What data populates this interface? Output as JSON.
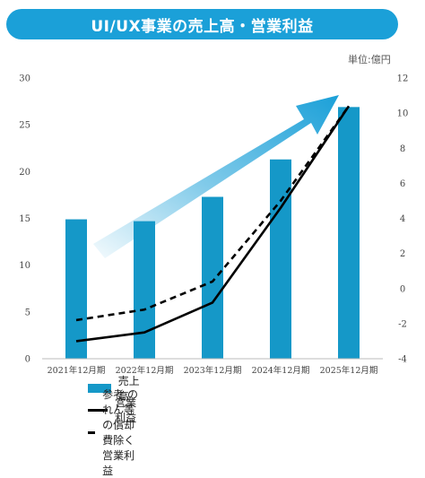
{
  "title": "UI/UX事業の売上高・営業利益",
  "unit_label": "単位:億円",
  "colors": {
    "banner": "#1ba0d8",
    "bar": "#1598c8",
    "line": "#000000",
    "arrow": "#1ba0d8"
  },
  "chart_data": {
    "type": "bar",
    "categories": [
      "2021年12月期",
      "2022年12月期",
      "2023年12月期",
      "2024年12月期",
      "2025年12月期"
    ],
    "y_left": {
      "lim": [
        0,
        30
      ],
      "ticks": [
        0,
        5,
        10,
        15,
        20,
        25,
        30
      ]
    },
    "y_right": {
      "lim": [
        -4,
        12
      ],
      "ticks": [
        -4,
        -2,
        0,
        2,
        4,
        6,
        8,
        10,
        12
      ]
    },
    "series": [
      {
        "name": "売上高",
        "type": "bar",
        "axis": "left",
        "values": [
          14.9,
          14.7,
          17.3,
          21.3,
          26.9
        ]
      },
      {
        "name": "営業利益",
        "type": "line",
        "axis": "right",
        "style": "solid",
        "values": [
          -3.0,
          -2.5,
          -0.8,
          4.6,
          10.4
        ]
      },
      {
        "name": "参考 のれん等の償却費除く営業利益",
        "type": "line",
        "axis": "right",
        "style": "dashed",
        "values": [
          -1.8,
          -1.2,
          0.4,
          5.0,
          10.4
        ]
      }
    ],
    "grid": false,
    "legend_position": "bottom"
  }
}
